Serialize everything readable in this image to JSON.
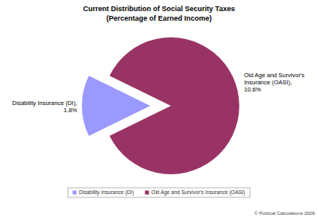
{
  "chart_data": {
    "type": "pie",
    "title": "Current Distribution of Social Security Taxes",
    "subtitle": "(Percentage of Earned Income)",
    "categories": [
      "Disability Insurance (DI)",
      "Old Age and Survivor's Insurance (OASI)"
    ],
    "values": [
      1.8,
      10.6
    ],
    "value_labels": [
      "Disability Insurance (DI), 1.8%",
      "Old Age and Survivor's Insurance (OASI), 10.6%"
    ],
    "colors": [
      "#9999ff",
      "#993366"
    ],
    "data_labels": true,
    "legend": "bottom",
    "copyright": "© Political Calculations 2006"
  }
}
